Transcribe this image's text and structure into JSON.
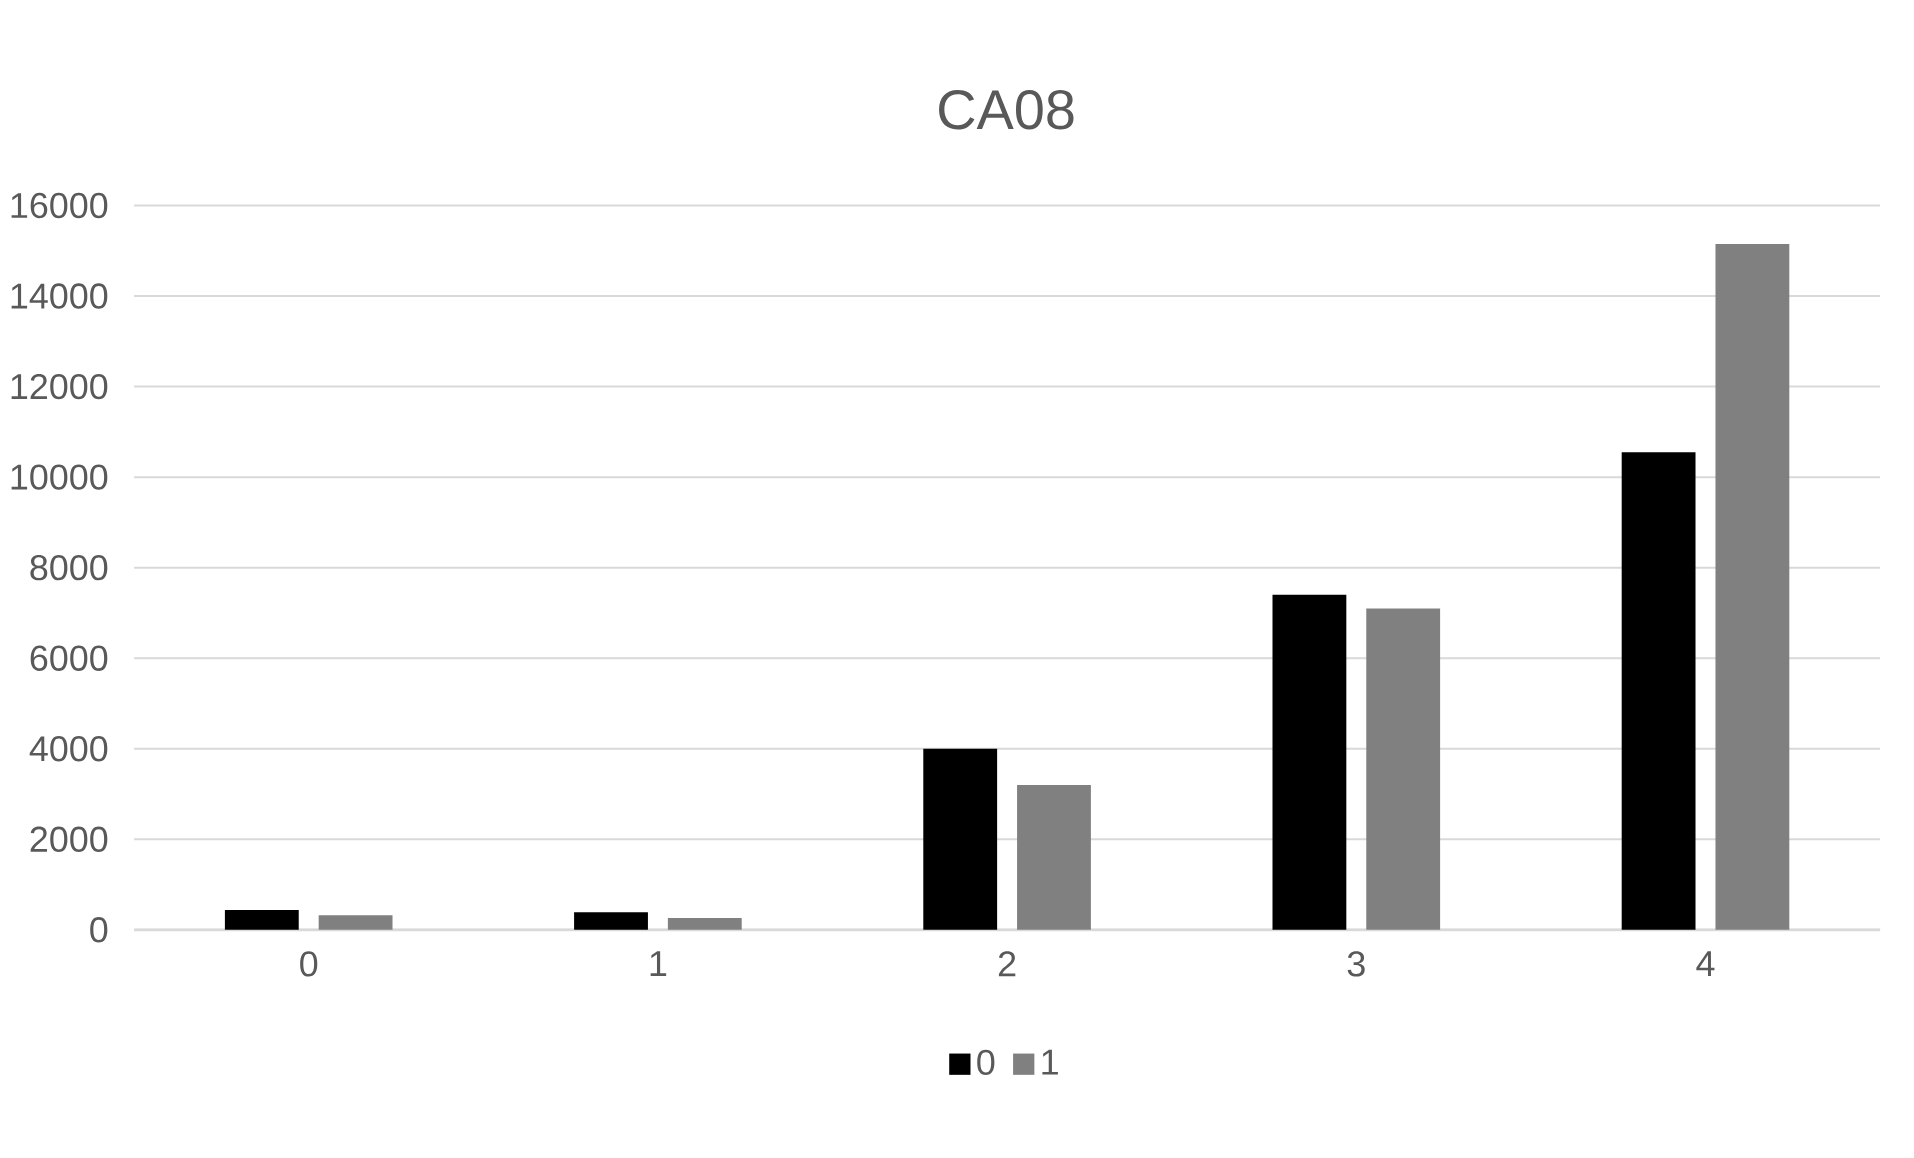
{
  "chart_data": {
    "type": "bar",
    "title": "CA08",
    "categories": [
      "0",
      "1",
      "2",
      "3",
      "4"
    ],
    "series": [
      {
        "name": "0",
        "color": "#000000",
        "values": [
          440,
          390,
          4000,
          7400,
          10550
        ]
      },
      {
        "name": "1",
        "color": "#808080",
        "values": [
          320,
          260,
          3200,
          7100,
          15150
        ]
      }
    ],
    "ylim": [
      0,
      16000
    ],
    "yticks": [
      0,
      2000,
      4000,
      6000,
      8000,
      10000,
      12000,
      14000,
      16000
    ],
    "grid": "y",
    "legend": "bottom"
  }
}
